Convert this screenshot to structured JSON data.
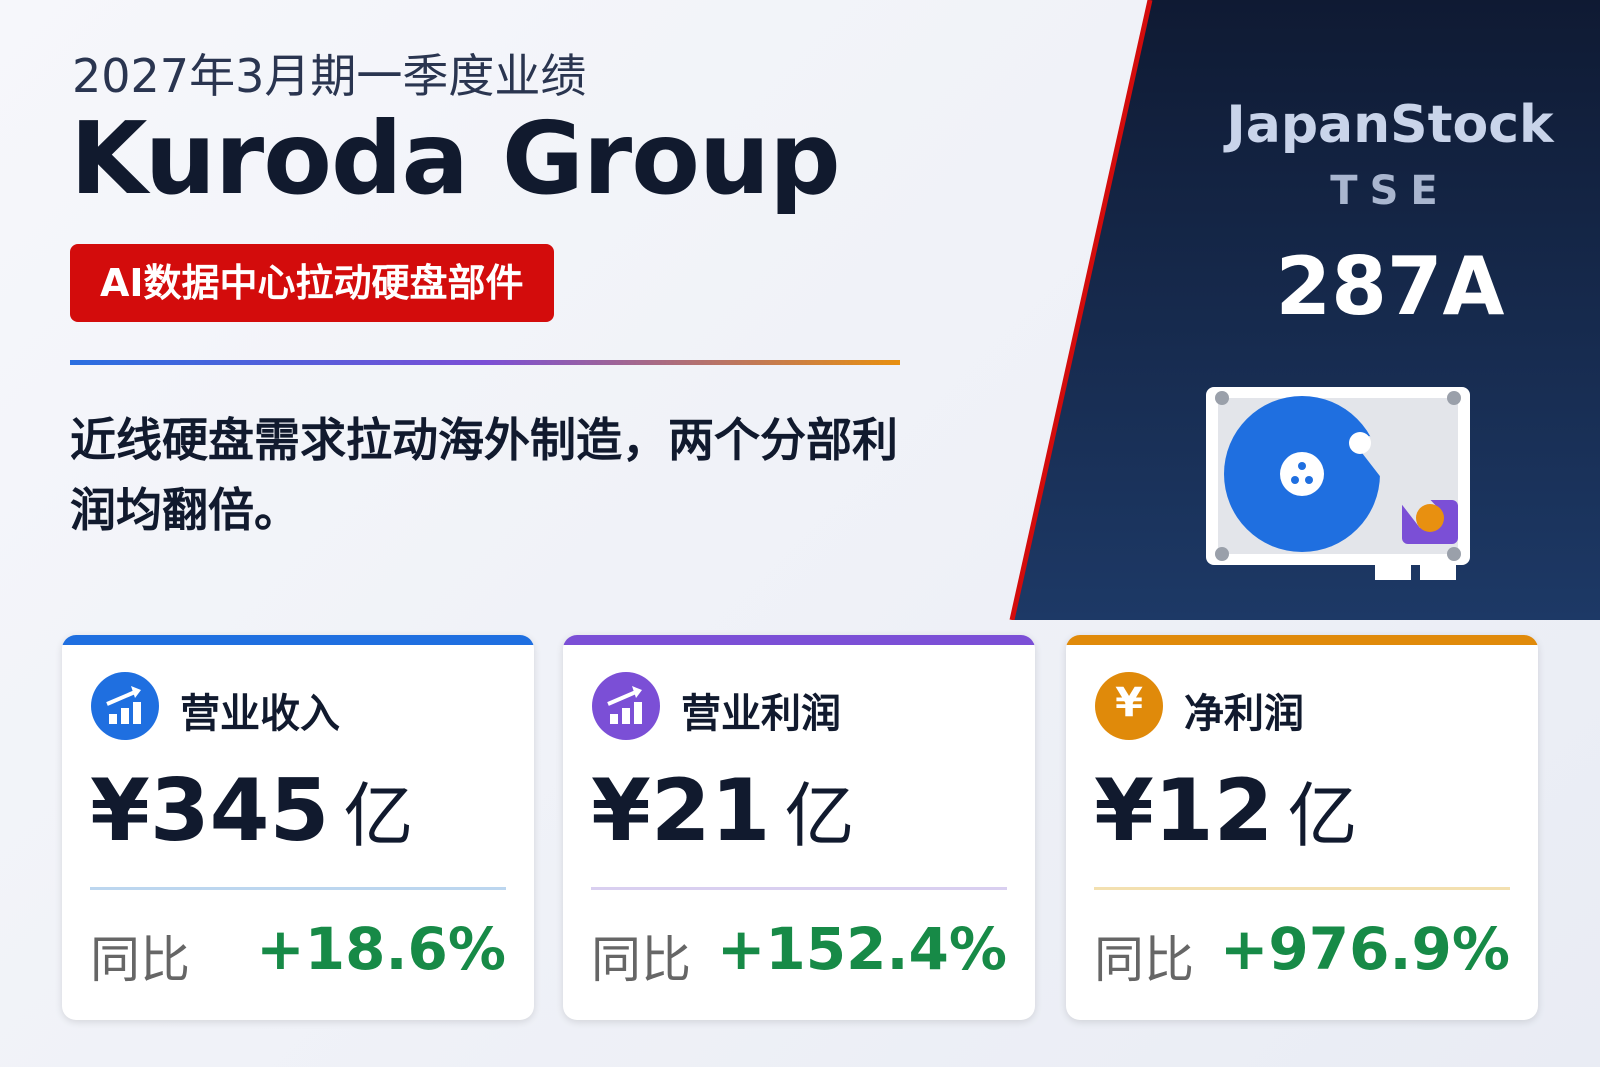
{
  "header": {
    "period": "2027年3月期一季度业绩",
    "company": "Kuroda Group",
    "tag": "AI数据中心拉动硬盘部件"
  },
  "summary": "近线硬盘需求拉动海外制造，两个分部利润均翻倍。",
  "side": {
    "brand": "JapanStock",
    "exchange": "TSE",
    "code": "287A"
  },
  "cards": [
    {
      "title": "营业收入",
      "value": "¥345",
      "unit": "亿",
      "yoy_label": "同比",
      "yoy": "+18.6%"
    },
    {
      "title": "营业利润",
      "value": "¥21",
      "unit": "亿",
      "yoy_label": "同比",
      "yoy": "+152.4%"
    },
    {
      "title": "净利润",
      "icon": "¥",
      "value": "¥12",
      "unit": "亿",
      "yoy_label": "同比",
      "yoy": "+976.9%"
    }
  ]
}
